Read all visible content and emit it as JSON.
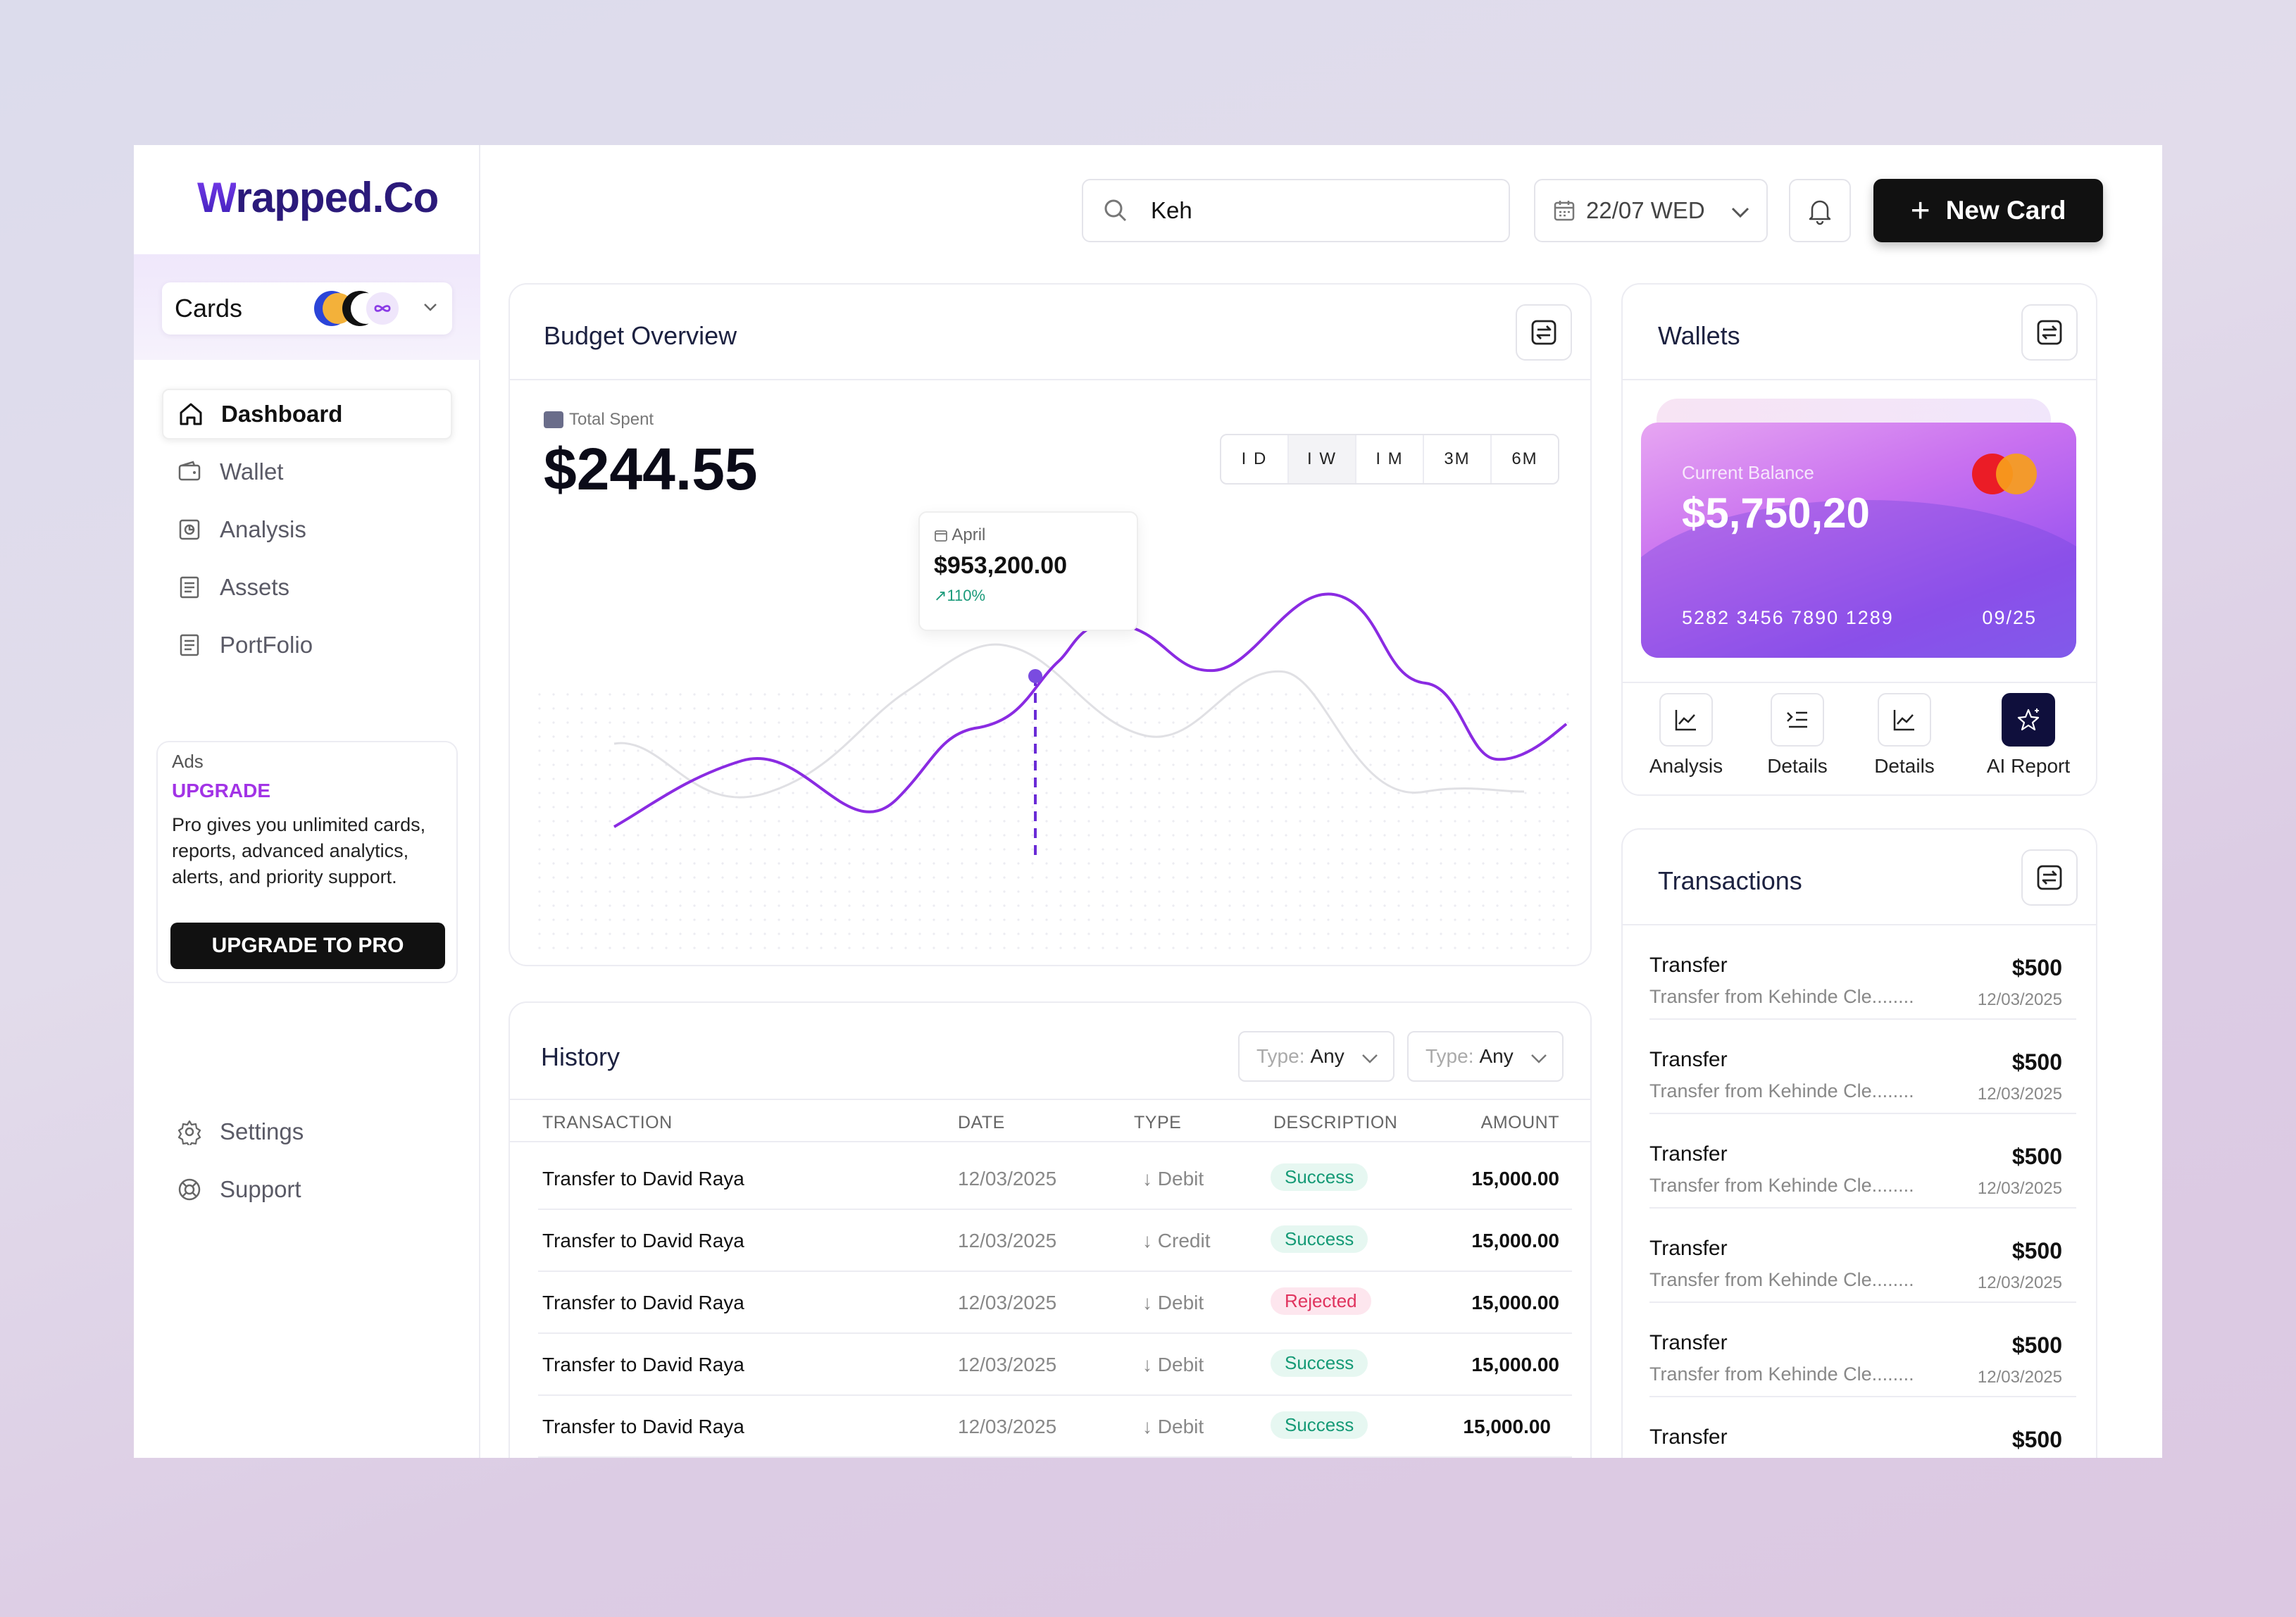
{
  "brand": {
    "logo_w": "W",
    "logo_rest": "rapped.Co"
  },
  "cards_selector": {
    "label": "Cards"
  },
  "nav": [
    {
      "label": "Dashboard",
      "icon": "home-icon"
    },
    {
      "label": "Wallet",
      "icon": "wallet-icon"
    },
    {
      "label": "Analysis",
      "icon": "analysis-icon"
    },
    {
      "label": "Assets",
      "icon": "assets-icon"
    },
    {
      "label": "PortFolio",
      "icon": "portfolio-icon"
    }
  ],
  "ads": {
    "tag": "Ads",
    "title": "UPGRADE",
    "body": "Pro gives you unlimited cards, reports, advanced analytics, alerts, and priority support.",
    "button": "UPGRADE TO PRO"
  },
  "bottom_nav": [
    {
      "label": "Settings",
      "icon": "gear-icon"
    },
    {
      "label": "Support",
      "icon": "support-icon"
    }
  ],
  "topbar": {
    "search_value": "Keh",
    "date": "22/07 WED",
    "new_card": "New Card"
  },
  "budget": {
    "title": "Budget Overview",
    "total_label": "Total Spent",
    "total_value": "$244.55",
    "ranges": [
      "I D",
      "I W",
      "I M",
      "3M",
      "6M"
    ],
    "selected_range": "I W",
    "tooltip": {
      "month": "April",
      "value": "$953,200.00",
      "change": "110%"
    }
  },
  "history": {
    "title": "History",
    "filters": [
      {
        "label": "Type:",
        "value": "Any"
      },
      {
        "label": "Type:",
        "value": "Any"
      }
    ],
    "columns": [
      "TRANSACTION",
      "DATE",
      "TYPE",
      "DESCRIPTION",
      "AMOUNT"
    ],
    "rows": [
      {
        "name": "Transfer to David Raya",
        "date": "12/03/2025",
        "type": "Debit",
        "status": "Success",
        "amount": "15,000.00"
      },
      {
        "name": "Transfer to David Raya",
        "date": "12/03/2025",
        "type": "Credit",
        "status": "Success",
        "amount": "15,000.00"
      },
      {
        "name": "Transfer to David Raya",
        "date": "12/03/2025",
        "type": "Debit",
        "status": "Rejected",
        "amount": "15,000.00"
      },
      {
        "name": "Transfer to David Raya",
        "date": "12/03/2025",
        "type": "Debit",
        "status": "Success",
        "amount": "15,000.00"
      },
      {
        "name": "Transfer to David Raya",
        "date": "12/03/2025",
        "type": "Debit",
        "status": "Success",
        "amount": "15,000.00"
      }
    ]
  },
  "wallets": {
    "title": "Wallets",
    "card": {
      "label": "Current Balance",
      "balance": "$5,750,20",
      "number": "5282 3456 7890 1289",
      "expiry": "09/25",
      "brand": "mastercard"
    },
    "actions": [
      {
        "label": "Analysis",
        "icon": "line-chart-icon"
      },
      {
        "label": "Details",
        "icon": "list-icon"
      },
      {
        "label": "Details",
        "icon": "line-chart-icon"
      },
      {
        "label": "AI Report",
        "icon": "sparkle-star-icon"
      }
    ]
  },
  "transactions": {
    "title": "Transactions",
    "items": [
      {
        "name": "Transfer",
        "desc": "Transfer  from Kehinde Cle........",
        "amount": "$500",
        "date": "12/03/2025"
      },
      {
        "name": "Transfer",
        "desc": "Transfer  from Kehinde Cle........",
        "amount": "$500",
        "date": "12/03/2025"
      },
      {
        "name": "Transfer",
        "desc": "Transfer  from Kehinde Cle........",
        "amount": "$500",
        "date": "12/03/2025"
      },
      {
        "name": "Transfer",
        "desc": "Transfer  from Kehinde Cle........",
        "amount": "$500",
        "date": "12/03/2025"
      },
      {
        "name": "Transfer",
        "desc": "Transfer  from Kehinde Cle........",
        "amount": "$500",
        "date": "12/03/2025"
      },
      {
        "name": "Transfer",
        "desc": "",
        "amount": "$500",
        "date": ""
      }
    ]
  },
  "colors": {
    "accent": "#8a2be2",
    "brand": "#3c1fb5",
    "dark": "#111111",
    "success": "#159a76",
    "rejected": "#e0335e"
  }
}
